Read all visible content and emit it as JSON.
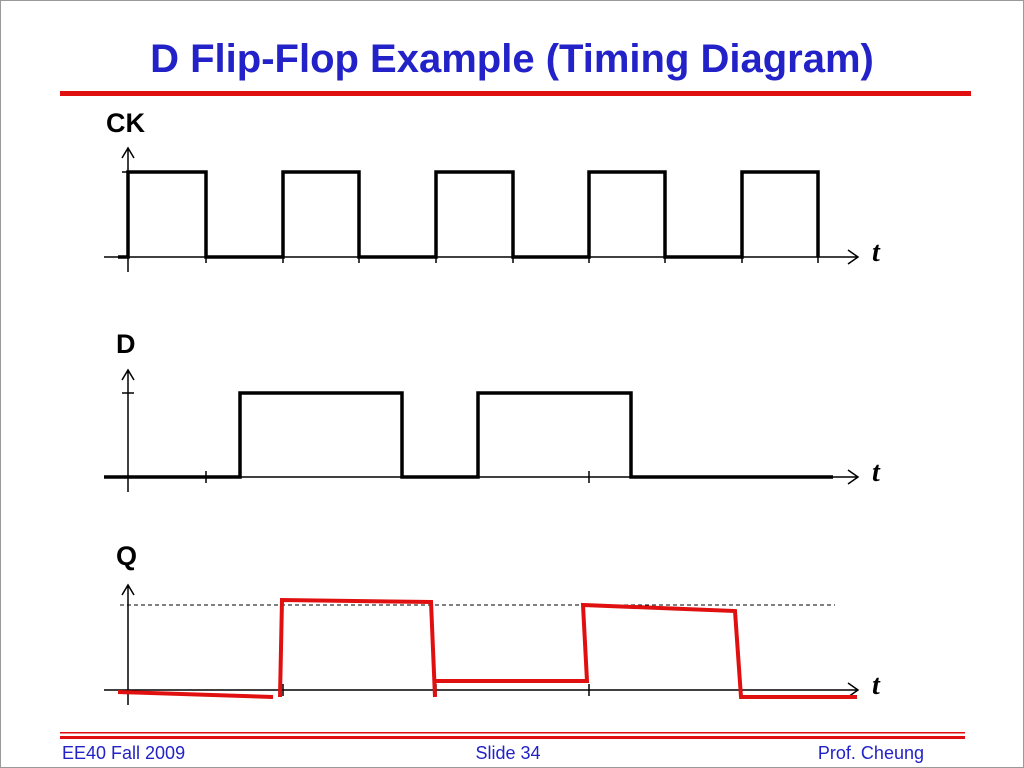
{
  "title": "D Flip-Flop Example (Timing Diagram)",
  "signals": [
    {
      "label": "CK",
      "axis": "t"
    },
    {
      "label": "D",
      "axis": "t"
    },
    {
      "label": "Q",
      "axis": "t"
    }
  ],
  "footer": {
    "left": "EE40 Fall 2009",
    "center": "Slide 34",
    "right": "Prof. Cheung"
  }
}
